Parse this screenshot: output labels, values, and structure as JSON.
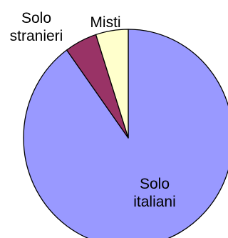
{
  "chart_data": {
    "type": "pie",
    "title": "",
    "slices": [
      {
        "label_lines": [
          "Solo",
          "italiani"
        ],
        "value": 90,
        "color": "#9999ff"
      },
      {
        "label_lines": [
          "Solo",
          "stranieri"
        ],
        "value": 5,
        "color": "#993366"
      },
      {
        "label_lines": [
          "Misti"
        ],
        "value": 5,
        "color": "#ffffcc"
      }
    ],
    "legend": "none"
  }
}
